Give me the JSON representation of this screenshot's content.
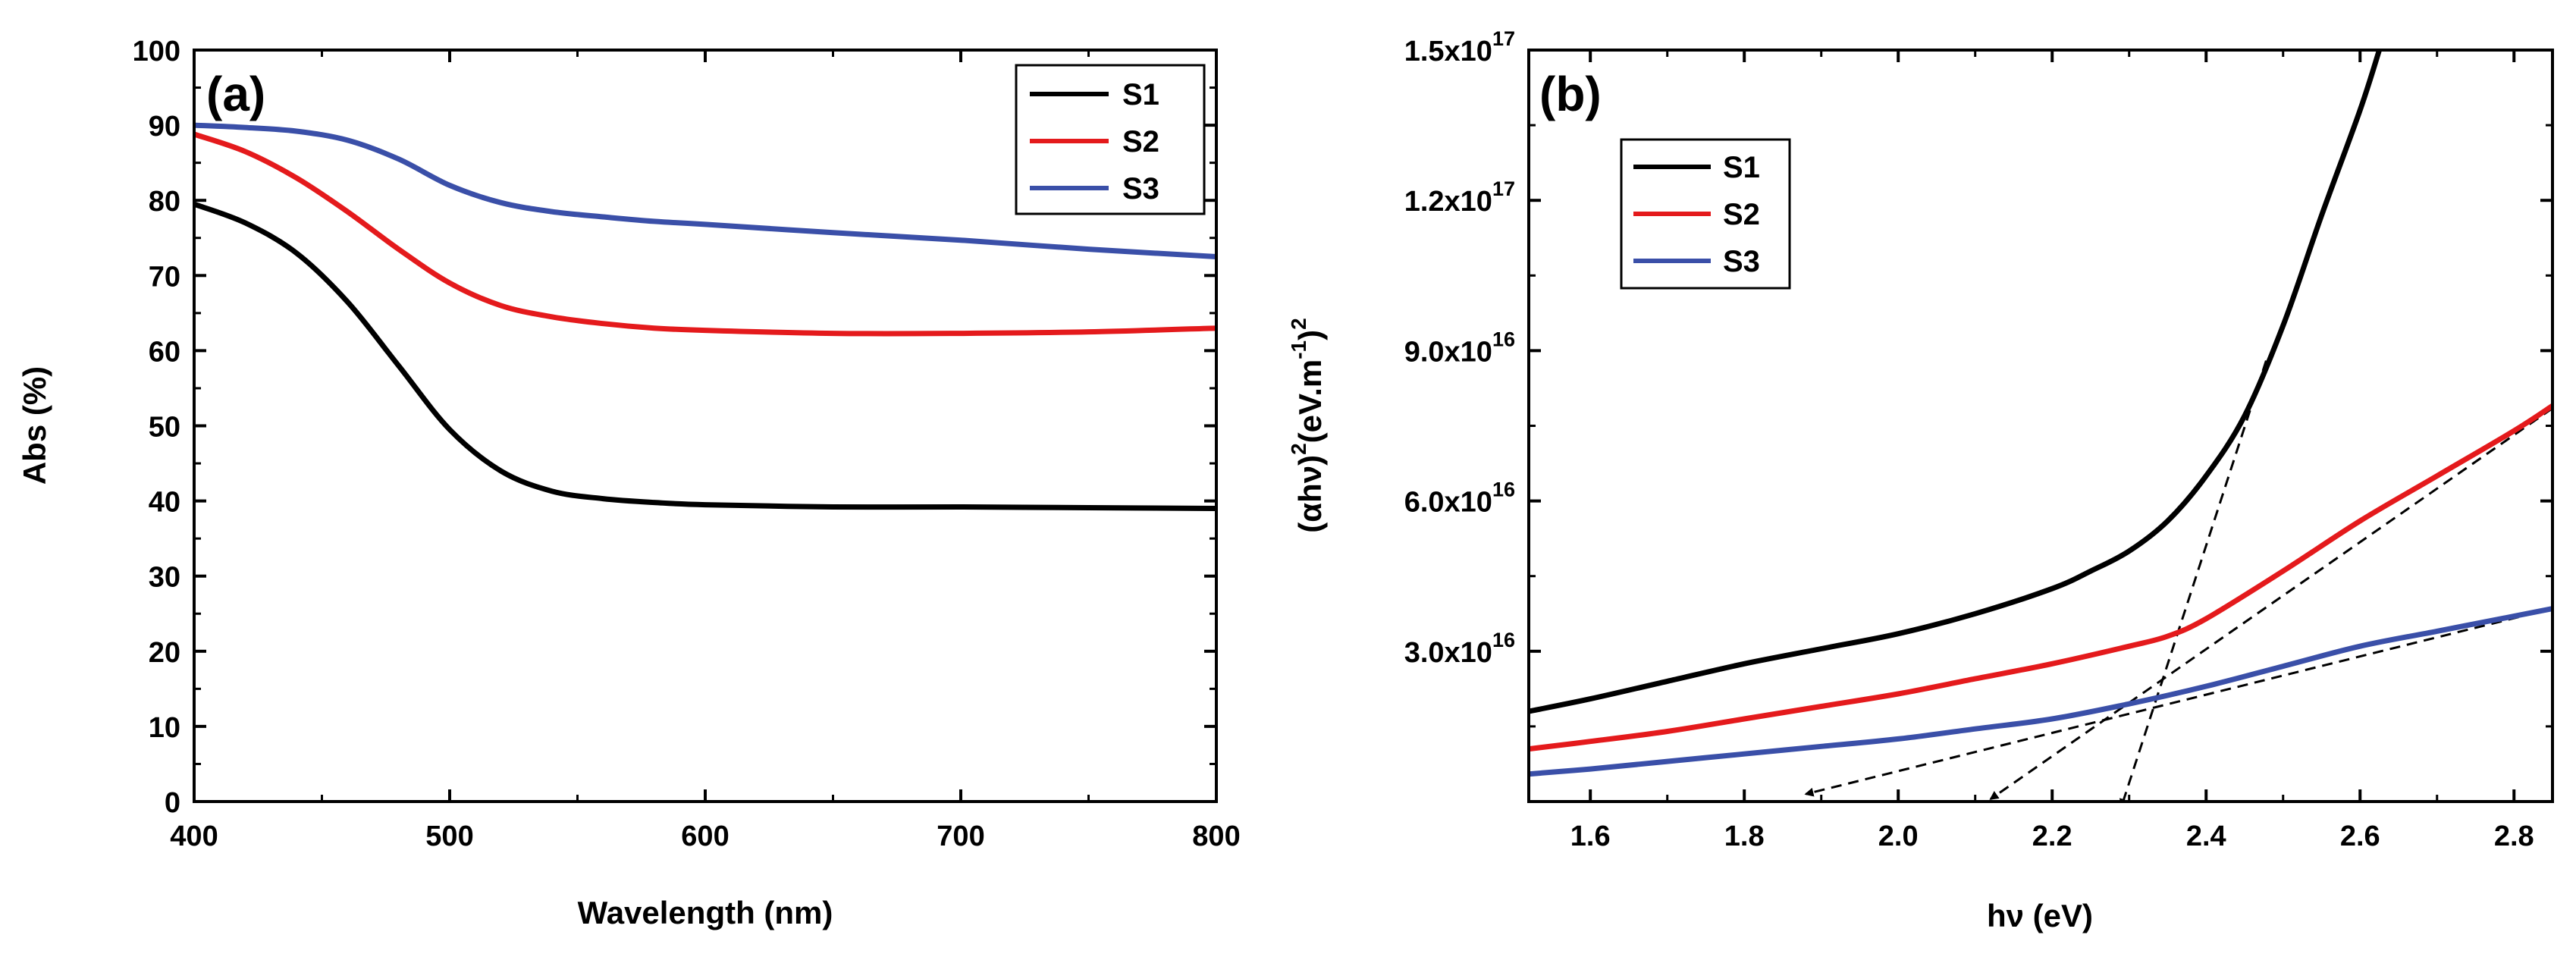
{
  "chart_data": [
    {
      "panel_label": "(a)",
      "type": "line",
      "xlabel": "Wavelength (nm)",
      "ylabel": "Abs (%)",
      "xlim": [
        400,
        800
      ],
      "ylim": [
        0,
        100
      ],
      "xticks": [
        400,
        500,
        600,
        700,
        800
      ],
      "xtick_labels": [
        "400",
        "500",
        "600",
        "700",
        "800"
      ],
      "yticks": [
        0,
        10,
        20,
        30,
        40,
        50,
        60,
        70,
        80,
        90,
        100
      ],
      "ytick_labels": [
        "0",
        "10",
        "20",
        "30",
        "40",
        "50",
        "60",
        "70",
        "80",
        "90",
        "100"
      ],
      "legend_position": "top-right",
      "series": [
        {
          "name": "S1",
          "color": "#000000",
          "x": [
            400,
            420,
            440,
            460,
            480,
            500,
            520,
            540,
            560,
            580,
            600,
            650,
            700,
            750,
            800
          ],
          "y": [
            79.5,
            77,
            73,
            66.5,
            58,
            49.5,
            44,
            41.3,
            40.3,
            39.8,
            39.5,
            39.2,
            39.2,
            39.1,
            39
          ]
        },
        {
          "name": "S2",
          "color": "#e41a1c",
          "x": [
            400,
            420,
            440,
            460,
            480,
            500,
            520,
            540,
            560,
            580,
            600,
            650,
            700,
            750,
            800
          ],
          "y": [
            88.8,
            86.5,
            83,
            78.5,
            73.5,
            69,
            66,
            64.5,
            63.6,
            63,
            62.7,
            62.3,
            62.3,
            62.5,
            63
          ]
        },
        {
          "name": "S3",
          "color": "#3a4fa8",
          "x": [
            400,
            420,
            440,
            460,
            480,
            500,
            520,
            540,
            560,
            580,
            600,
            650,
            700,
            750,
            800
          ],
          "y": [
            90,
            89.7,
            89.2,
            88,
            85.5,
            82,
            79.7,
            78.5,
            77.8,
            77.2,
            76.8,
            75.7,
            74.7,
            73.5,
            72.5
          ]
        }
      ]
    },
    {
      "panel_label": "(b)",
      "type": "line",
      "xlabel": "hν (eV)",
      "ylabel_parts": {
        "p1": "(αhν)",
        "p2": "2",
        "p3": "(eV.m",
        "p4": "-1",
        "p5": ")",
        "p6": "2"
      },
      "xlim": [
        1.52,
        2.85
      ],
      "ylim": [
        0,
        1.5e+17
      ],
      "xticks": [
        1.6,
        1.8,
        2.0,
        2.2,
        2.4,
        2.6,
        2.8
      ],
      "xtick_labels": [
        "1.6",
        "1.8",
        "2.0",
        "2.2",
        "2.4",
        "2.6",
        "2.8"
      ],
      "yticks": [
        3e+16,
        6e+16,
        9e+16,
        1.2e+17,
        1.5e+17
      ],
      "ytick_labels": [
        {
          "mant": "3.0x10",
          "exp": "16"
        },
        {
          "mant": "6.0x10",
          "exp": "16"
        },
        {
          "mant": "9.0x10",
          "exp": "16"
        },
        {
          "mant": "1.2x10",
          "exp": "17"
        },
        {
          "mant": "1.5x10",
          "exp": "17"
        }
      ],
      "legend_position": "top-left",
      "series": [
        {
          "name": "S1",
          "color": "#000000",
          "x": [
            1.52,
            1.6,
            1.7,
            1.8,
            1.9,
            2.0,
            2.1,
            2.2,
            2.25,
            2.3,
            2.35,
            2.4,
            2.45,
            2.5,
            2.55,
            2.6,
            2.625
          ],
          "y": [
            1.8e+16,
            2.05e+16,
            2.4e+16,
            2.75e+16,
            3.05e+16,
            3.35e+16,
            3.75e+16,
            4.25e+16,
            4.6e+16,
            5e+16,
            5.6e+16,
            6.5e+16,
            7.7e+16,
            9.5e+16,
            1.17e+17,
            1.38e+17,
            1.5e+17
          ]
        },
        {
          "name": "S2",
          "color": "#e41a1c",
          "x": [
            1.52,
            1.6,
            1.7,
            1.8,
            1.9,
            2.0,
            2.1,
            2.2,
            2.3,
            2.35,
            2.4,
            2.5,
            2.6,
            2.7,
            2.8,
            2.85
          ],
          "y": [
            1.05e+16,
            1.2e+16,
            1.4e+16,
            1.65e+16,
            1.9e+16,
            2.15e+16,
            2.45e+16,
            2.75e+16,
            3.1e+16,
            3.3e+16,
            3.65e+16,
            4.6e+16,
            5.6e+16,
            6.5e+16,
            7.4e+16,
            7.9e+16
          ]
        },
        {
          "name": "S3",
          "color": "#3a4fa8",
          "x": [
            1.52,
            1.6,
            1.7,
            1.8,
            1.9,
            2.0,
            2.1,
            2.2,
            2.3,
            2.4,
            2.5,
            2.6,
            2.7,
            2.8,
            2.85
          ],
          "y": [
            5500000000000000.0,
            6500000000000000.0,
            8000000000000000.0,
            9500000000000000.0,
            1.1e+16,
            1.25e+16,
            1.45e+16,
            1.65e+16,
            1.95e+16,
            2.3e+16,
            2.7e+16,
            3.1e+16,
            3.4e+16,
            3.7e+16,
            3.85e+16
          ]
        }
      ],
      "tangent_lines": [
        {
          "for": "S1",
          "x": [
            2.478,
            2.29
          ],
          "y": [
            8.8e+16,
            -1000000000000000.0
          ]
        },
        {
          "for": "S2",
          "x": [
            2.85,
            2.12
          ],
          "y": [
            7.85e+16,
            500000000000000.0
          ]
        },
        {
          "for": "S3",
          "x": [
            2.85,
            1.88
          ],
          "y": [
            3.85e+16,
            1500000000000000.0
          ]
        }
      ]
    }
  ]
}
